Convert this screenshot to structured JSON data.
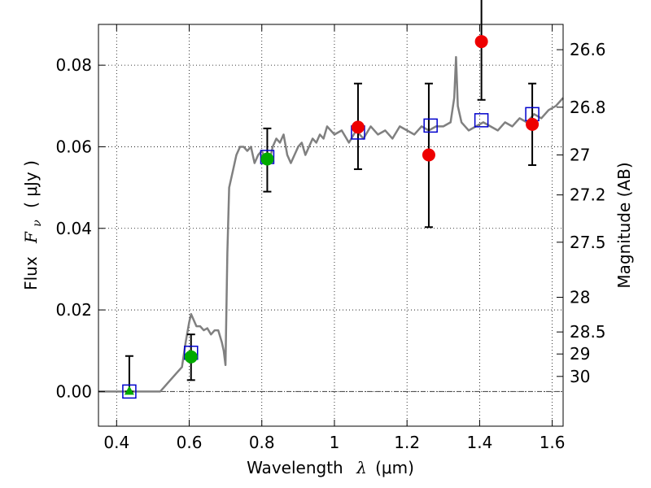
{
  "chart_data": {
    "type": "scatter",
    "xlabel_text": "Wavelength",
    "xlabel_math": "λ",
    "xlabel_unit": "(μm)",
    "ylabel_text": "Flux",
    "ylabel_math": "F",
    "ylabel_math_sub": "ν",
    "ylabel_unit": "( μJy )",
    "y2label": "Magnitude (AB)",
    "xlim": [
      0.35,
      1.63
    ],
    "ylim": [
      -0.0085,
      0.09
    ],
    "grid": true,
    "grid_style": "dotted",
    "x_ticks": [
      0.4,
      0.6,
      0.8,
      1.0,
      1.2,
      1.4,
      1.6
    ],
    "x_tick_labels": [
      "0.4",
      "0.6",
      "0.8",
      "1",
      "1.2",
      "1.4",
      "1.6"
    ],
    "y_ticks": [
      0.0,
      0.02,
      0.04,
      0.06,
      0.08
    ],
    "y_tick_labels": [
      "0.00",
      "0.02",
      "0.04",
      "0.06",
      "0.08"
    ],
    "y2_ticks": [
      {
        "label": "26.6",
        "flux": 0.0838
      },
      {
        "label": "26.8",
        "flux": 0.0697
      },
      {
        "label": "27",
        "flux": 0.058
      },
      {
        "label": "27.2",
        "flux": 0.0482
      },
      {
        "label": "27.5",
        "flux": 0.0366
      },
      {
        "label": "28",
        "flux": 0.0231
      },
      {
        "label": "28.5",
        "flux": 0.0146
      },
      {
        "label": "29",
        "flux": 0.0092
      },
      {
        "label": "30",
        "flux": 0.0037
      }
    ],
    "colors": {
      "model": "#808080",
      "model_points": "#0000cc",
      "green_points": "#00aa00",
      "red_points": "#ee0000",
      "errorbars": "#000000",
      "zero_line": "#404040"
    },
    "series": [
      {
        "kind": "model_spectrum",
        "x": [
          0.35,
          0.5,
          0.52,
          0.53,
          0.55,
          0.57,
          0.58,
          0.59,
          0.6,
          0.605,
          0.61,
          0.615,
          0.62,
          0.63,
          0.64,
          0.65,
          0.66,
          0.67,
          0.68,
          0.69,
          0.695,
          0.7,
          0.705,
          0.71,
          0.72,
          0.73,
          0.74,
          0.75,
          0.76,
          0.77,
          0.78,
          0.79,
          0.8,
          0.81,
          0.82,
          0.83,
          0.84,
          0.85,
          0.86,
          0.87,
          0.88,
          0.89,
          0.9,
          0.91,
          0.92,
          0.93,
          0.94,
          0.95,
          0.96,
          0.97,
          0.98,
          0.99,
          1.0,
          1.02,
          1.04,
          1.06,
          1.08,
          1.1,
          1.12,
          1.14,
          1.16,
          1.18,
          1.2,
          1.22,
          1.24,
          1.26,
          1.28,
          1.3,
          1.32,
          1.33,
          1.335,
          1.34,
          1.35,
          1.37,
          1.39,
          1.41,
          1.43,
          1.45,
          1.47,
          1.49,
          1.51,
          1.53,
          1.55,
          1.57,
          1.59,
          1.61,
          1.63
        ],
        "y": [
          0.0,
          0.0,
          0.0,
          0.001,
          0.003,
          0.005,
          0.006,
          0.012,
          0.017,
          0.019,
          0.018,
          0.017,
          0.016,
          0.016,
          0.015,
          0.0155,
          0.014,
          0.015,
          0.015,
          0.012,
          0.01,
          0.0065,
          0.034,
          0.05,
          0.054,
          0.058,
          0.06,
          0.06,
          0.059,
          0.06,
          0.056,
          0.058,
          0.059,
          0.057,
          0.056,
          0.06,
          0.062,
          0.061,
          0.063,
          0.058,
          0.056,
          0.058,
          0.06,
          0.061,
          0.058,
          0.06,
          0.062,
          0.061,
          0.063,
          0.062,
          0.065,
          0.064,
          0.063,
          0.064,
          0.061,
          0.064,
          0.062,
          0.065,
          0.063,
          0.064,
          0.062,
          0.065,
          0.064,
          0.063,
          0.065,
          0.064,
          0.065,
          0.065,
          0.066,
          0.072,
          0.082,
          0.07,
          0.066,
          0.064,
          0.065,
          0.066,
          0.065,
          0.064,
          0.066,
          0.065,
          0.067,
          0.066,
          0.068,
          0.067,
          0.069,
          0.07,
          0.072
        ]
      },
      {
        "kind": "model_points",
        "marker": "square",
        "x": [
          0.435,
          0.605,
          0.815,
          1.065,
          1.265,
          1.405,
          1.545
        ],
        "y": [
          0.0,
          0.0095,
          0.0575,
          0.0635,
          0.0652,
          0.0665,
          0.068
        ]
      },
      {
        "kind": "green_points",
        "marker": "circle",
        "x": [
          0.605,
          0.815
        ],
        "y": [
          0.0085,
          0.057
        ],
        "yerr_low": [
          0.0057,
          0.008
        ],
        "yerr_high": [
          0.0055,
          0.0075
        ]
      },
      {
        "kind": "green_upper_limit",
        "marker": "triangle",
        "x": [
          0.435
        ],
        "y": [
          0.0
        ],
        "yerr_low": [
          0.0
        ],
        "yerr_high": [
          0.0087
        ]
      },
      {
        "kind": "red_points",
        "marker": "circle",
        "x": [
          1.065,
          1.26,
          1.405,
          1.545
        ],
        "y": [
          0.0648,
          0.058,
          0.0858,
          0.0655
        ],
        "yerr_low": [
          0.0103,
          0.0177,
          0.0143,
          0.01
        ],
        "yerr_high": [
          0.0107,
          0.0175,
          0.0142,
          0.01
        ]
      }
    ]
  }
}
